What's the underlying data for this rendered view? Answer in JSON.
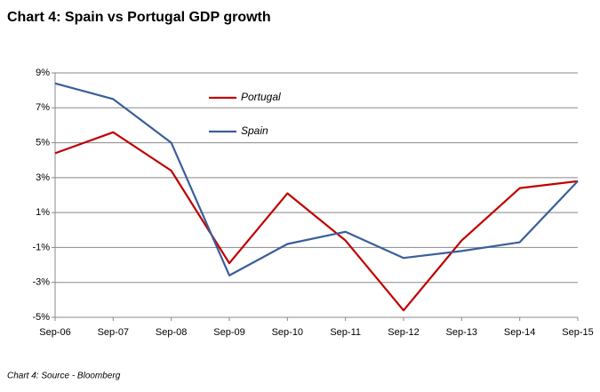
{
  "chart_data": {
    "type": "line",
    "title": "Chart 4: Spain vs Portugal GDP growth",
    "source": "Chart 4: Source - Bloomberg",
    "categories": [
      "Sep-06",
      "Sep-07",
      "Sep-08",
      "Sep-09",
      "Sep-10",
      "Sep-11",
      "Sep-12",
      "Sep-13",
      "Sep-14",
      "Sep-15"
    ],
    "series": [
      {
        "name": "Portugal",
        "color": "#c00000",
        "values": [
          4.4,
          5.6,
          3.4,
          -1.9,
          2.1,
          -0.6,
          -4.6,
          -0.6,
          2.4,
          2.8
        ]
      },
      {
        "name": "Spain",
        "color": "#3a5f9a",
        "values": [
          8.4,
          7.5,
          5.0,
          -2.6,
          -0.8,
          -0.1,
          -1.6,
          -1.2,
          -0.7,
          2.8
        ]
      }
    ],
    "ylim": [
      -5,
      9
    ],
    "yticks": [
      {
        "value": -5,
        "label": "-5%"
      },
      {
        "value": -3,
        "label": "-3%"
      },
      {
        "value": -1,
        "label": "-1%"
      },
      {
        "value": 1,
        "label": "1%"
      },
      {
        "value": 3,
        "label": "3%"
      },
      {
        "value": 5,
        "label": "5%"
      },
      {
        "value": 7,
        "label": "7%"
      },
      {
        "value": 9,
        "label": "9%"
      }
    ],
    "grid": true
  }
}
